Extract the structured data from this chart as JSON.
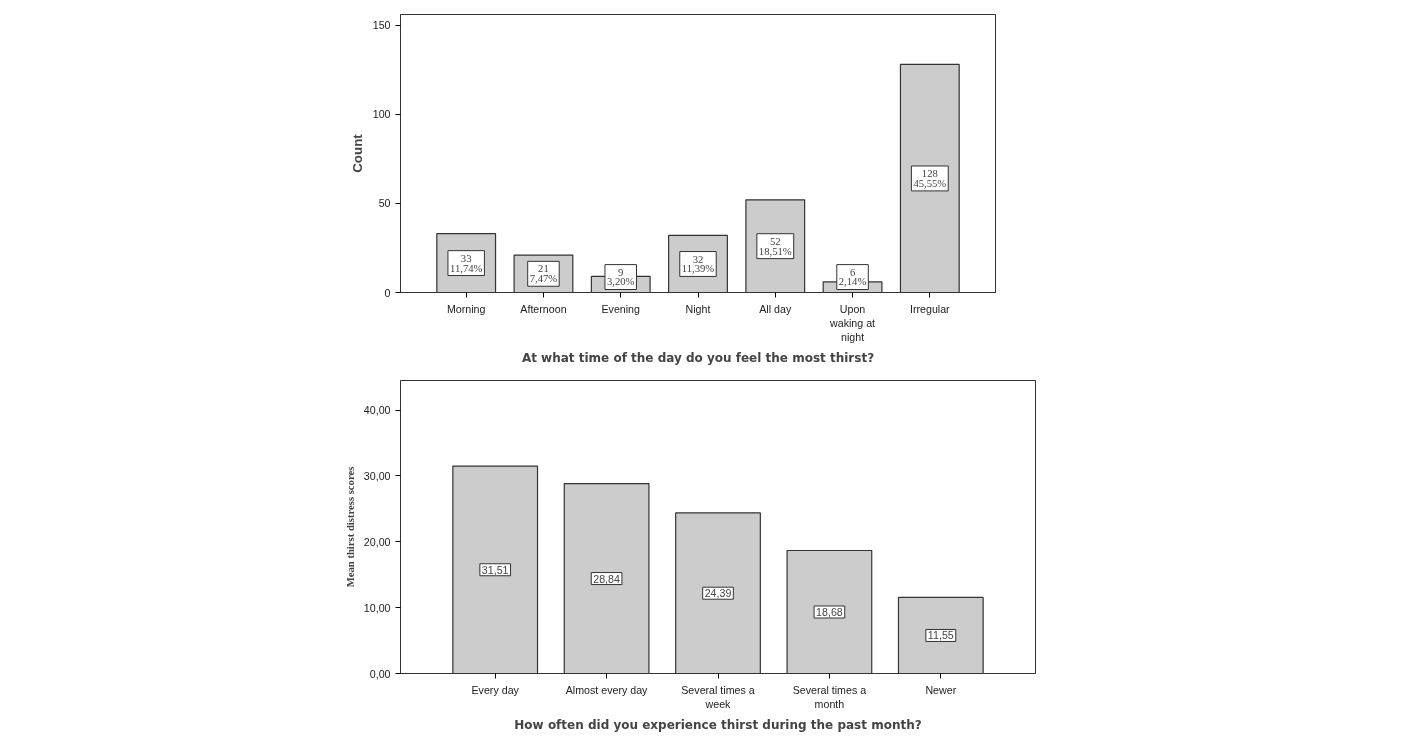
{
  "chart_data": [
    {
      "type": "bar",
      "xlabel": "At what time of the day do you feel the most thirst?",
      "ylabel": "Count",
      "categories": [
        "Morning",
        "Afternoon",
        "Evening",
        "Night",
        "All day",
        "Upon waking at night",
        "Irregular"
      ],
      "values": [
        33,
        21,
        9,
        32,
        52,
        6,
        128
      ],
      "color": "#cccccc",
      "value_labels": [
        "33\n11,74%",
        "21\n7,47%",
        "9\n3,20%",
        "32\n11,39%",
        "52\n18,51%",
        "6\n2,14%",
        "128\n45,55%"
      ],
      "ylim": [
        0,
        156
      ],
      "yticks": [
        0,
        50,
        100,
        150
      ],
      "grid": false,
      "legend": false
    },
    {
      "type": "bar",
      "xlabel": "How often did you experience thirst during the past month?",
      "ylabel": "Mean thirst distress scores",
      "categories": [
        "Every day",
        "Almost every day",
        "Several times a week",
        "Several times a month",
        "Newer"
      ],
      "values": [
        31.51,
        28.84,
        24.39,
        18.68,
        11.55
      ],
      "color": "#cccccc",
      "value_labels": [
        "31,51",
        "28,84",
        "24,39",
        "18,68",
        "11,55"
      ],
      "ylim": [
        0,
        44.5
      ],
      "yticks": [
        {
          "value": 0,
          "label": "0,00"
        },
        {
          "value": 10,
          "label": "10,00"
        },
        {
          "value": 20,
          "label": "20,00"
        },
        {
          "value": 30,
          "label": "30,00"
        },
        {
          "value": 40,
          "label": "40,00"
        }
      ],
      "grid": false,
      "legend": false
    }
  ]
}
